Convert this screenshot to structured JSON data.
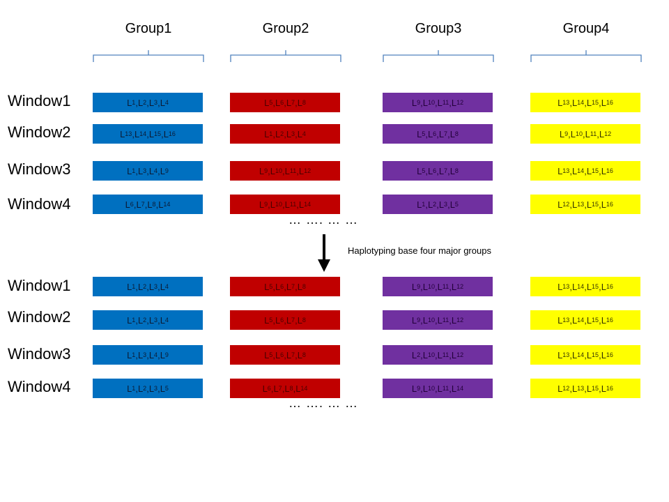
{
  "groups": [
    "Group1",
    "Group2",
    "Group3",
    "Group4"
  ],
  "windows": [
    "Window1",
    "Window2",
    "Window3",
    "Window4"
  ],
  "colors": {
    "group1": "#0070c0",
    "group2": "#c00000",
    "group3": "#7030a0",
    "group4": "#ffff00"
  },
  "continuation": "… …. … …",
  "arrow_label": "Haplotyping base four major groups",
  "before": [
    [
      [
        [
          "1",
          "2",
          "3",
          "4"
        ]
      ],
      [
        [
          "5",
          "6",
          "7",
          "8"
        ]
      ],
      [
        [
          "9",
          "10",
          "11",
          "12"
        ]
      ],
      [
        [
          "13",
          "14",
          "15",
          "16"
        ]
      ]
    ],
    [
      [
        [
          "13",
          "14",
          "15",
          "16"
        ]
      ],
      [
        [
          "1",
          "2",
          "3",
          "4"
        ]
      ],
      [
        [
          "5",
          "6",
          "7",
          "8"
        ]
      ],
      [
        [
          "9",
          "10",
          "11",
          "12"
        ]
      ]
    ],
    [
      [
        [
          "1",
          "3",
          "4 ",
          "9"
        ]
      ],
      [
        [
          "9",
          "10",
          "11",
          "12"
        ]
      ],
      [
        [
          "5",
          "6",
          "7",
          "8"
        ]
      ],
      [
        [
          "13",
          "14",
          "15",
          "16"
        ]
      ]
    ],
    [
      [
        [
          "6",
          "7",
          "8",
          "14"
        ]
      ],
      [
        [
          "9",
          "10",
          "11",
          "14"
        ]
      ],
      [
        [
          "1",
          "2",
          "3",
          "5"
        ]
      ],
      [
        [
          "12",
          "13",
          "15",
          "16"
        ]
      ]
    ]
  ],
  "after": [
    [
      [
        [
          "1",
          "2",
          "3",
          "4"
        ]
      ],
      [
        [
          "5",
          "6",
          "7",
          "8"
        ]
      ],
      [
        [
          "9",
          "10",
          "11",
          "12"
        ]
      ],
      [
        [
          "13",
          "14",
          "15",
          "16"
        ]
      ]
    ],
    [
      [
        [
          "1",
          "2",
          "3",
          "4"
        ]
      ],
      [
        [
          "5",
          "6",
          "7",
          "8"
        ]
      ],
      [
        [
          "9",
          "10",
          "11",
          "12"
        ]
      ],
      [
        [
          "13",
          "14",
          "15",
          "16"
        ]
      ]
    ],
    [
      [
        [
          "1",
          "3",
          "4 ",
          "9"
        ]
      ],
      [
        [
          "5",
          "6",
          "7",
          "8"
        ]
      ],
      [
        [
          "2",
          "10",
          "11",
          "12"
        ]
      ],
      [
        [
          "13",
          "14",
          "15",
          "16"
        ]
      ]
    ],
    [
      [
        [
          "1",
          "2",
          "3",
          "5"
        ]
      ],
      [
        [
          "6",
          "7",
          "8",
          "14"
        ]
      ],
      [
        [
          "9",
          "10",
          "11",
          "14"
        ]
      ],
      [
        [
          "12",
          "13",
          "15",
          "16"
        ]
      ]
    ]
  ]
}
